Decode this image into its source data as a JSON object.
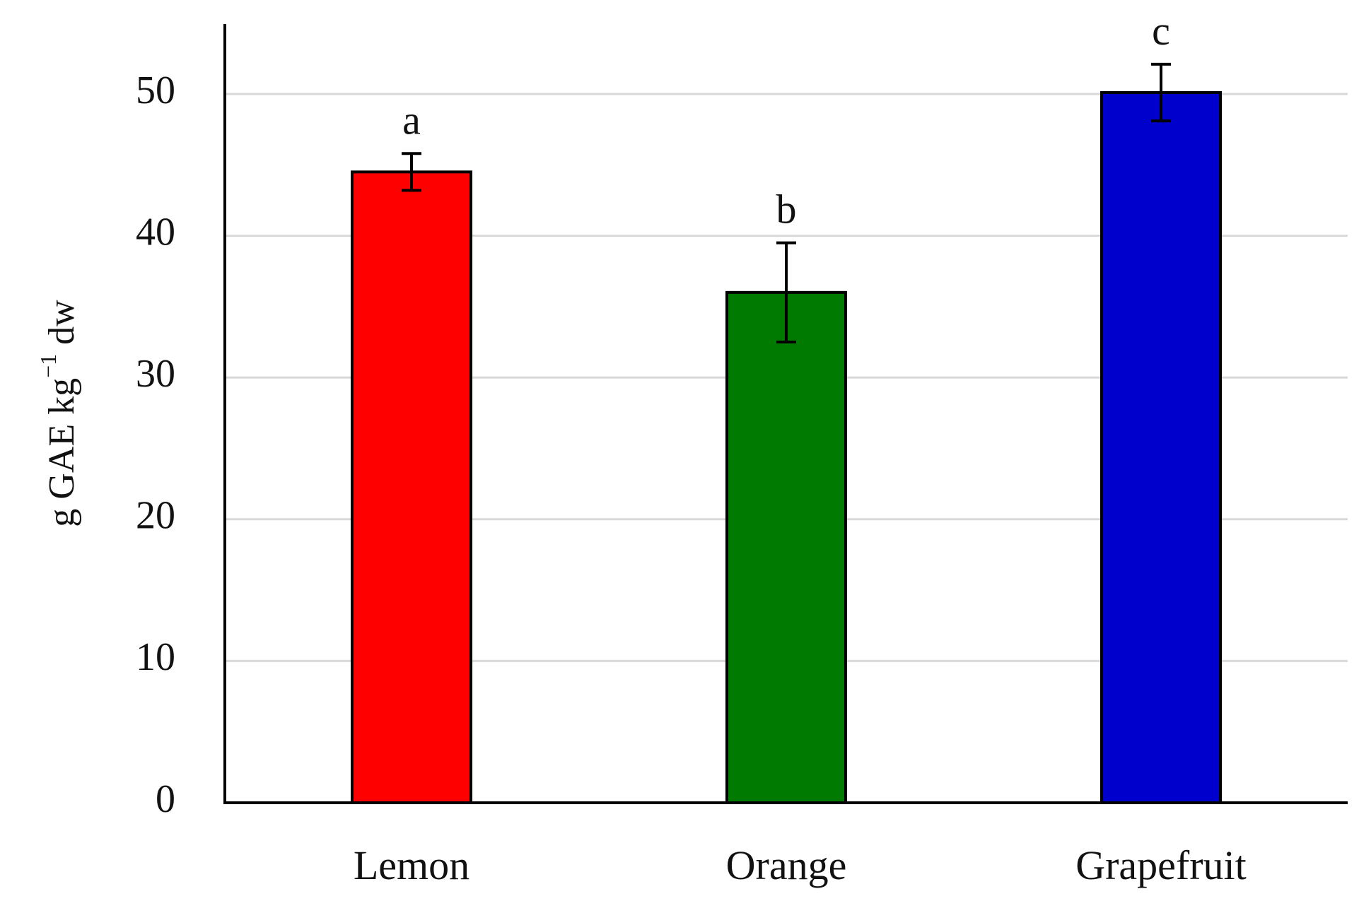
{
  "chart_data": {
    "type": "bar",
    "categories": [
      "Lemon",
      "Orange",
      "Grapefruit"
    ],
    "values": [
      44.5,
      36.0,
      50.1
    ],
    "errors": [
      1.3,
      3.5,
      2.0
    ],
    "significance": [
      "a",
      "b",
      "c"
    ],
    "bar_colors": [
      "#ff0000",
      "#007a00",
      "#0000cc"
    ],
    "ylabel_parts": {
      "pre": "g GAE kg",
      "sup": "−1",
      "post": " dw"
    },
    "ylim": [
      0,
      55
    ],
    "yticks": [
      0,
      10,
      20,
      30,
      40,
      50
    ],
    "grid": true,
    "grid_color": "#d9d9d9"
  }
}
